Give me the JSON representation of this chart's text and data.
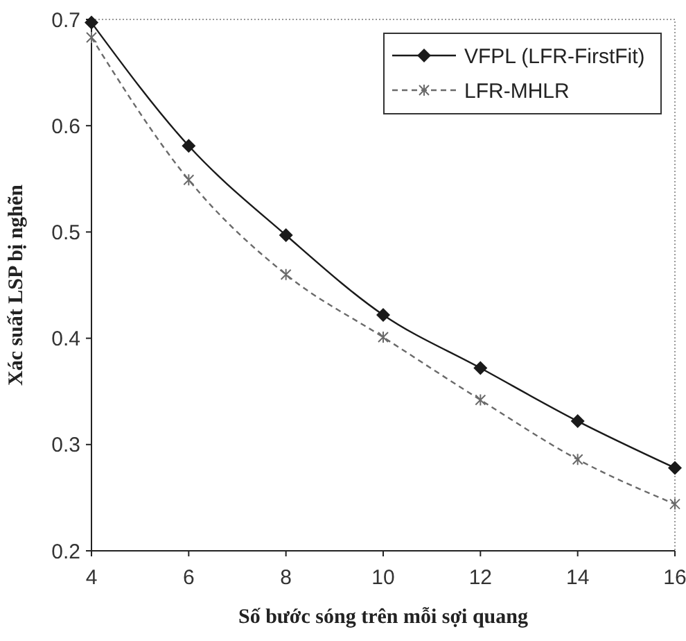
{
  "chart_data": {
    "type": "line",
    "xlabel": "Số bước sóng trên mỗi sợi quang",
    "ylabel": "Xác suất LSP bị nghẽn",
    "x": [
      4,
      6,
      8,
      10,
      12,
      14,
      16
    ],
    "series": [
      {
        "name": "VFPL (LFR-FirstFit)",
        "color": "#1a1a1a",
        "marker": "diamond",
        "line_style": "solid",
        "values": [
          0.697,
          0.581,
          0.497,
          0.422,
          0.372,
          0.322,
          0.278
        ]
      },
      {
        "name": "LFR-MHLR",
        "color": "#6a6a6a",
        "marker": "cross",
        "line_style": "dashed",
        "values": [
          0.683,
          0.549,
          0.46,
          0.401,
          0.342,
          0.286,
          0.244
        ]
      }
    ],
    "xlim": [
      4,
      16
    ],
    "xticks": [
      4,
      6,
      8,
      10,
      12,
      14,
      16
    ],
    "ylim": [
      0.2,
      0.7
    ],
    "yticks": [
      0.2,
      0.3,
      0.4,
      0.5,
      0.6,
      0.7
    ],
    "grid": false,
    "legend": "top right"
  }
}
